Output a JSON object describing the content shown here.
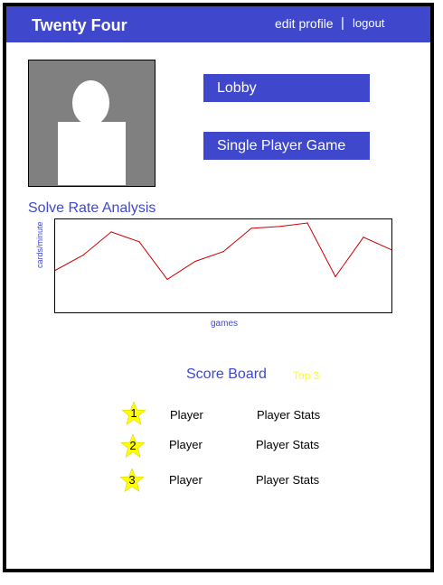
{
  "header": {
    "title": "Twenty Four",
    "edit_profile": "edit profile",
    "separator": "|",
    "logout": "logout"
  },
  "avatar": {
    "icon": "user-silhouette-icon"
  },
  "buttons": {
    "lobby": "Lobby",
    "single_player": "Single Player Game"
  },
  "chart_section": {
    "title": "Solve Rate Analysis"
  },
  "chart_data": {
    "type": "line",
    "title": "",
    "xlabel": "games",
    "ylabel": "cards/minute",
    "grid": false,
    "line_color": "#cc0000",
    "x": [
      0,
      1,
      2,
      3,
      4,
      5,
      6,
      7,
      8,
      9,
      10,
      11,
      12
    ],
    "values": [
      0.45,
      0.62,
      0.88,
      0.77,
      0.35,
      0.55,
      0.66,
      0.92,
      0.94,
      0.98,
      0.38,
      0.82,
      0.68
    ],
    "ylim": [
      0,
      1
    ]
  },
  "scoreboard": {
    "title": "Score Board",
    "badge": "Top 3",
    "badge_color": "#ffff00",
    "star_color": "#ffff00",
    "entries": [
      {
        "rank": "1",
        "player": "Player",
        "stats": "Player Stats"
      },
      {
        "rank": "2",
        "player": "Player",
        "stats": "Player Stats"
      },
      {
        "rank": "3",
        "player": "Player",
        "stats": "Player Stats"
      }
    ]
  },
  "colors": {
    "accent": "#3f48cc",
    "frame": "#000000",
    "avatar_bg": "#808080"
  }
}
